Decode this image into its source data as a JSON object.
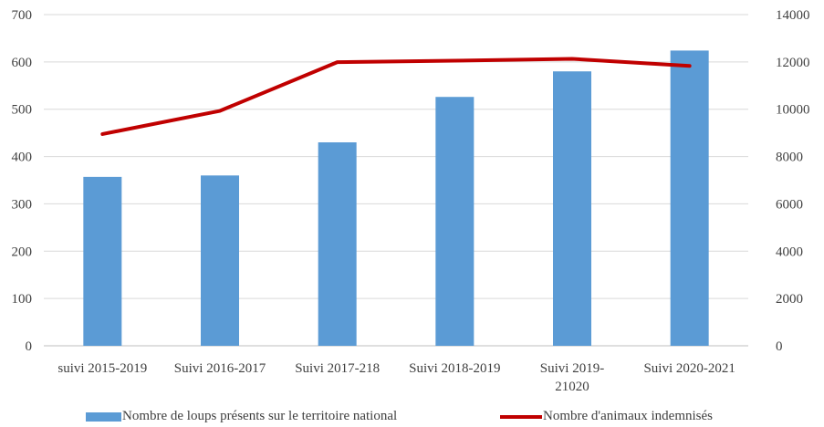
{
  "chart_data": {
    "type": "bar",
    "title": "",
    "categories": [
      "suivi 2015-2019",
      "Suivi 2016-2017",
      "Suivi 2017-218",
      "Suivi 2018-2019",
      "Suivi 2019-21020",
      "Suivi 2020-2021"
    ],
    "series": [
      {
        "name": "Nombre de loups présents sur le territoire national",
        "type": "bar",
        "axis": "left",
        "color": "#5b9bd5",
        "values": [
          357,
          360,
          430,
          526,
          580,
          624
        ]
      },
      {
        "name": "Nombre d'animaux indemnisés",
        "type": "line",
        "axis": "right",
        "color": "#c00000",
        "values": [
          8950,
          9930,
          11990,
          12050,
          12130,
          11830
        ]
      }
    ],
    "y_left": {
      "ylim": [
        0,
        700
      ],
      "ticks": [
        "0",
        "100",
        "200",
        "300",
        "400",
        "500",
        "600",
        "700"
      ]
    },
    "y_right": {
      "ylim": [
        0,
        14000
      ],
      "ticks": [
        "0",
        "2000",
        "4000",
        "6000",
        "8000",
        "10000",
        "12000",
        "14000"
      ]
    },
    "grid": true,
    "legend_position": "bottom"
  }
}
